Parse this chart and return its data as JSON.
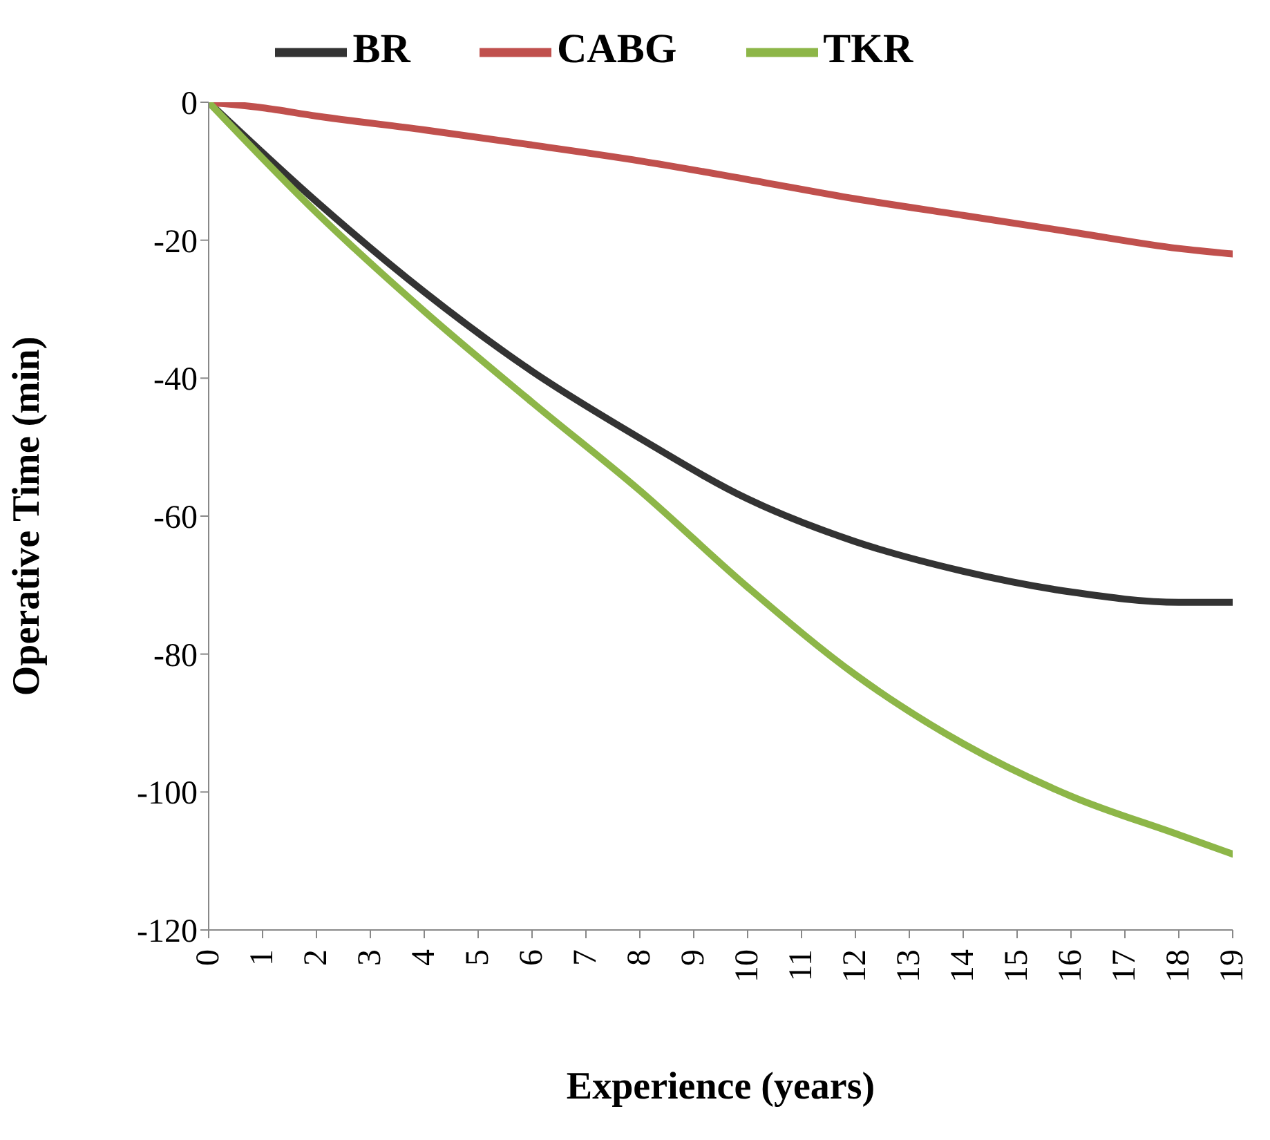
{
  "chart_data": {
    "type": "line",
    "xlabel": "Experience (years)",
    "ylabel": "Operative Time (min)",
    "xlim": [
      0,
      19
    ],
    "xticks": [
      0,
      1,
      2,
      3,
      4,
      5,
      6,
      7,
      8,
      9,
      10,
      11,
      12,
      13,
      14,
      15,
      16,
      17,
      18,
      19
    ],
    "ylim": [
      -120,
      0
    ],
    "yticks": [
      -120,
      -100,
      -80,
      -60,
      -40,
      -20,
      0
    ],
    "grid": false,
    "legend": "top",
    "marker": "none",
    "line_style": "solid",
    "series": [
      {
        "name": "BR",
        "color": "#333333",
        "x": [
          0,
          2,
          4,
          6,
          8,
          10,
          12,
          14,
          16,
          18,
          19
        ],
        "values": [
          0,
          -14.4,
          -27.5,
          -39,
          -48.7,
          -57.5,
          -63.7,
          -68,
          -71,
          -72.5,
          -72.5
        ]
      },
      {
        "name": "CABG",
        "color": "#c0504d",
        "x": [
          0,
          1,
          2,
          4,
          6,
          8,
          10,
          12,
          14,
          16,
          18,
          19
        ],
        "values": [
          0,
          -0.8,
          -2,
          -4,
          -6.2,
          -8.5,
          -11.2,
          -14,
          -16.4,
          -18.8,
          -21.2,
          -22
        ]
      },
      {
        "name": "TKR",
        "color": "#8db648",
        "x": [
          0,
          2,
          4,
          6,
          8,
          10,
          12,
          14,
          16,
          18,
          19
        ],
        "values": [
          0,
          -16,
          -30.3,
          -43.5,
          -56.3,
          -70.3,
          -83,
          -93,
          -100.6,
          -106.2,
          -109
        ]
      }
    ]
  }
}
